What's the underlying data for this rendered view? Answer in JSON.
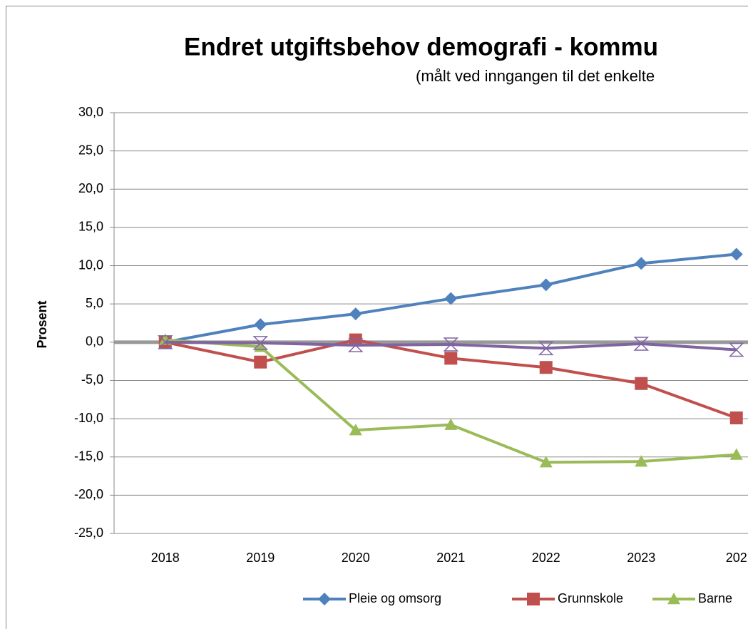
{
  "chart_data": {
    "type": "line",
    "title": "Endret utgiftsbehov demografi - kommu",
    "subtitle": "(målt ved inngangen til det enkelte",
    "y_label": "Prosent",
    "categories": [
      "2018",
      "2019",
      "2020",
      "2021",
      "2022",
      "2023",
      "202"
    ],
    "ylim": [
      -25,
      30
    ],
    "yticks": [
      {
        "value": -25,
        "label": "-25,0"
      },
      {
        "value": -20,
        "label": "-20,0"
      },
      {
        "value": -15,
        "label": "-15,0"
      },
      {
        "value": -10,
        "label": "-10,0"
      },
      {
        "value": -5,
        "label": "-5,0"
      },
      {
        "value": 0,
        "label": "0,0"
      },
      {
        "value": 5,
        "label": "5,0"
      },
      {
        "value": 10,
        "label": "10,0"
      },
      {
        "value": 15,
        "label": "15,0"
      },
      {
        "value": 20,
        "label": "20,0"
      },
      {
        "value": 25,
        "label": "25,0"
      },
      {
        "value": 30,
        "label": "30,0"
      }
    ],
    "grid": true,
    "legend": "bottom",
    "series": [
      {
        "name": "Pleie og omsorg",
        "color": "#4f81bd",
        "marker": "diamond",
        "values": [
          0,
          2.3,
          3.7,
          5.7,
          7.5,
          10.3,
          11.5
        ]
      },
      {
        "name": "Grunnskole",
        "color": "#c0504d",
        "marker": "square",
        "values": [
          0,
          -2.6,
          0.3,
          -2.1,
          -3.3,
          -5.4,
          -9.9
        ]
      },
      {
        "name": "Barne",
        "color": "#9bbb59",
        "marker": "triangle",
        "values": [
          0.3,
          -0.6,
          -11.5,
          -10.8,
          -15.7,
          -15.6,
          -14.7
        ]
      },
      {
        "color": "#8064a2",
        "marker": "hourglass",
        "values": [
          0,
          -0.1,
          -0.4,
          -0.3,
          -0.8,
          -0.2,
          -1.0
        ]
      }
    ]
  }
}
